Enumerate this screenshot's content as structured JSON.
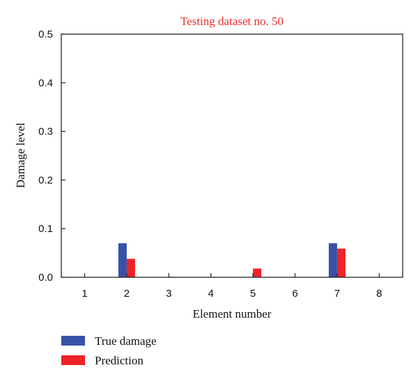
{
  "colors": {
    "title": "#e8302a",
    "true_damage": "#3651a8",
    "prediction": "#ee2227",
    "axis": "#222222"
  },
  "chart_data": {
    "type": "bar",
    "title": "Testing dataset no. 50",
    "xlabel": "Element number",
    "ylabel": "Damage level",
    "categories": [
      "1",
      "2",
      "3",
      "4",
      "5",
      "6",
      "7",
      "8"
    ],
    "ylim": [
      0,
      0.5
    ],
    "yticks": [
      "0.0",
      "0.1",
      "0.2",
      "0.3",
      "0.4",
      "0.5"
    ],
    "grid": false,
    "legend_position": "bottom-left",
    "series": [
      {
        "name": "True damage",
        "color": "#3651a8",
        "values": [
          0,
          0.07,
          0,
          0,
          0,
          0,
          0.07,
          0
        ]
      },
      {
        "name": "Prediction",
        "color": "#ee2227",
        "values": [
          0,
          0.038,
          0.001,
          0,
          0.018,
          0,
          0.059,
          0
        ]
      }
    ]
  }
}
